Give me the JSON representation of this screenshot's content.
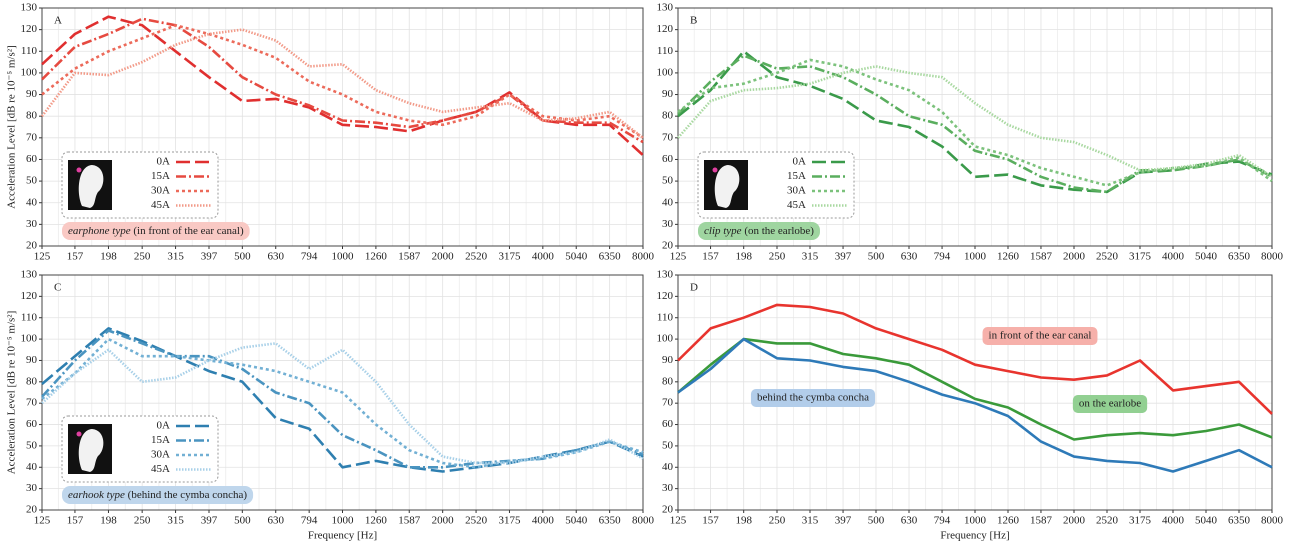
{
  "chart_data": [
    {
      "type": "line",
      "panel_label": "A",
      "ylabel": "Acceleration Level [dB re 10⁻⁵ m/s²]",
      "caption_em": "earphone type",
      "caption": "(in front of the ear canal)",
      "caption_color": "#f9c9c4",
      "legend": "lower left",
      "x": [
        125,
        157,
        198,
        250,
        315,
        397,
        500,
        630,
        794,
        1000,
        1260,
        1587,
        2000,
        2520,
        3175,
        4000,
        5040,
        6350,
        8000
      ],
      "series": [
        {
          "name": "0A",
          "color": "#e02f2f",
          "linestyle": "dashed",
          "values": [
            104,
            118,
            126,
            122,
            110,
            98,
            87,
            88,
            84,
            76,
            75,
            73,
            78,
            82,
            91,
            78,
            76,
            76,
            62
          ]
        },
        {
          "name": "15A",
          "color": "#e64a40",
          "linestyle": "dashdot",
          "values": [
            97,
            112,
            118,
            125,
            122,
            112,
            98,
            90,
            85,
            78,
            77,
            75,
            78,
            82,
            90,
            78,
            77,
            77,
            68
          ]
        },
        {
          "name": "30A",
          "color": "#ec6a5a",
          "linestyle": "dotted",
          "values": [
            90,
            102,
            110,
            116,
            122,
            118,
            113,
            107,
            96,
            90,
            82,
            78,
            76,
            80,
            90,
            80,
            78,
            80,
            70
          ]
        },
        {
          "name": "45A",
          "color": "#f29a88",
          "linestyle": "densedot",
          "values": [
            80,
            100,
            99,
            105,
            113,
            118,
            120,
            115,
            103,
            104,
            92,
            86,
            82,
            84,
            86,
            78,
            79,
            82,
            70
          ]
        }
      ],
      "xscale": "log",
      "xlim": [
        125,
        8000
      ],
      "xticks": [
        125,
        157,
        198,
        250,
        315,
        397,
        500,
        630,
        794,
        1000,
        1260,
        1587,
        2000,
        2520,
        3175,
        4000,
        5040,
        6350,
        8000
      ],
      "ylim": [
        20,
        130
      ],
      "yticks": [
        20,
        30,
        40,
        50,
        60,
        70,
        80,
        90,
        100,
        110,
        120,
        130
      ],
      "grid": true
    },
    {
      "type": "line",
      "panel_label": "B",
      "caption_em": "clip type",
      "caption": "(on the earlobe)",
      "caption_color": "#9fd5a0",
      "legend": "lower left",
      "x": [
        125,
        157,
        198,
        250,
        315,
        397,
        500,
        630,
        794,
        1000,
        1260,
        1587,
        2000,
        2520,
        3175,
        4000,
        5040,
        6350,
        8000
      ],
      "series": [
        {
          "name": "0A",
          "color": "#3a9a4a",
          "linestyle": "dashed",
          "values": [
            80,
            92,
            110,
            98,
            94,
            88,
            78,
            75,
            66,
            52,
            53,
            48,
            46,
            45,
            54,
            55,
            58,
            59,
            53
          ]
        },
        {
          "name": "15A",
          "color": "#5aae5e",
          "linestyle": "dashdot",
          "values": [
            81,
            96,
            108,
            102,
            103,
            98,
            90,
            80,
            76,
            64,
            60,
            52,
            47,
            45,
            55,
            55,
            57,
            60,
            52
          ]
        },
        {
          "name": "30A",
          "color": "#7cc27c",
          "linestyle": "dotted",
          "values": [
            82,
            93,
            95,
            100,
            106,
            103,
            97,
            92,
            82,
            66,
            62,
            56,
            52,
            48,
            54,
            56,
            57,
            61,
            50
          ]
        },
        {
          "name": "45A",
          "color": "#a8d8a0",
          "linestyle": "densedot",
          "values": [
            70,
            87,
            92,
            93,
            95,
            100,
            103,
            100,
            98,
            86,
            76,
            70,
            68,
            62,
            55,
            56,
            58,
            62,
            52
          ]
        }
      ],
      "xscale": "log",
      "xlim": [
        125,
        8000
      ],
      "xticks": [
        125,
        157,
        198,
        250,
        315,
        397,
        500,
        630,
        794,
        1000,
        1260,
        1587,
        2000,
        2520,
        3175,
        4000,
        5040,
        6350,
        8000
      ],
      "ylim": [
        20,
        130
      ],
      "yticks": [
        20,
        30,
        40,
        50,
        60,
        70,
        80,
        90,
        100,
        110,
        120,
        130
      ],
      "grid": true
    },
    {
      "type": "line",
      "panel_label": "C",
      "ylabel": "Acceleration Level [dB re 10⁻⁵ m/s²]",
      "xlabel": "Frequency [Hz]",
      "caption_em": "earhook type",
      "caption": "(behind the cymba concha)",
      "caption_color": "#bfd6ec",
      "legend": "lower left",
      "x": [
        125,
        157,
        198,
        250,
        315,
        397,
        500,
        630,
        794,
        1000,
        1260,
        1587,
        2000,
        2520,
        3175,
        4000,
        5040,
        6350,
        8000
      ],
      "series": [
        {
          "name": "0A",
          "color": "#2e7fb0",
          "linestyle": "dashed",
          "values": [
            79,
            92,
            105,
            99,
            92,
            85,
            80,
            63,
            58,
            40,
            43,
            40,
            38,
            40,
            42,
            45,
            48,
            52,
            45
          ]
        },
        {
          "name": "15A",
          "color": "#4a94c0",
          "linestyle": "dashdot",
          "values": [
            73,
            90,
            104,
            98,
            92,
            92,
            86,
            75,
            70,
            55,
            48,
            40,
            40,
            42,
            43,
            44,
            48,
            52,
            46
          ]
        },
        {
          "name": "30A",
          "color": "#72b0d4",
          "linestyle": "dotted",
          "values": [
            72,
            84,
            100,
            92,
            92,
            90,
            88,
            85,
            80,
            75,
            60,
            48,
            42,
            40,
            43,
            44,
            47,
            52,
            47
          ]
        },
        {
          "name": "45A",
          "color": "#a8d0e8",
          "linestyle": "densedot",
          "values": [
            70,
            84,
            95,
            80,
            82,
            90,
            96,
            98,
            86,
            95,
            80,
            60,
            45,
            42,
            42,
            45,
            47,
            53,
            44
          ]
        }
      ],
      "xscale": "log",
      "xlim": [
        125,
        8000
      ],
      "xticks": [
        125,
        157,
        198,
        250,
        315,
        397,
        500,
        630,
        794,
        1000,
        1260,
        1587,
        2000,
        2520,
        3175,
        4000,
        5040,
        6350,
        8000
      ],
      "ylim": [
        20,
        130
      ],
      "yticks": [
        20,
        30,
        40,
        50,
        60,
        70,
        80,
        90,
        100,
        110,
        120,
        130
      ],
      "grid": true
    },
    {
      "type": "line",
      "panel_label": "D",
      "xlabel": "Frequency [Hz]",
      "x": [
        125,
        157,
        198,
        250,
        315,
        397,
        500,
        630,
        794,
        1000,
        1260,
        1587,
        2000,
        2520,
        3175,
        4000,
        5040,
        6350,
        8000
      ],
      "series": [
        {
          "name": "in front of the ear canal",
          "color": "#e8342e",
          "label_fill": "#f6b0aa",
          "linestyle": "solid",
          "values": [
            90,
            105,
            110,
            116,
            115,
            112,
            105,
            100,
            95,
            88,
            85,
            82,
            81,
            83,
            90,
            76,
            78,
            80,
            65
          ]
        },
        {
          "name": "on the earlobe",
          "color": "#3a9a3a",
          "label_fill": "#92d092",
          "linestyle": "solid",
          "values": [
            75,
            88,
            100,
            98,
            98,
            93,
            91,
            88,
            80,
            72,
            68,
            60,
            53,
            55,
            56,
            55,
            57,
            60,
            54
          ]
        },
        {
          "name": "behind the cymba concha",
          "color": "#2e7ab8",
          "label_fill": "#b2cdea",
          "linestyle": "solid",
          "values": [
            75,
            86,
            100,
            91,
            90,
            87,
            85,
            80,
            74,
            70,
            64,
            52,
            45,
            43,
            42,
            38,
            43,
            48,
            40
          ]
        }
      ],
      "xscale": "log",
      "xlim": [
        125,
        8000
      ],
      "xticks": [
        125,
        157,
        198,
        250,
        315,
        397,
        500,
        630,
        794,
        1000,
        1260,
        1587,
        2000,
        2520,
        3175,
        4000,
        5040,
        6350,
        8000
      ],
      "ylim": [
        20,
        130
      ],
      "yticks": [
        20,
        30,
        40,
        50,
        60,
        70,
        80,
        90,
        100,
        110,
        120,
        130
      ],
      "grid": true
    }
  ]
}
